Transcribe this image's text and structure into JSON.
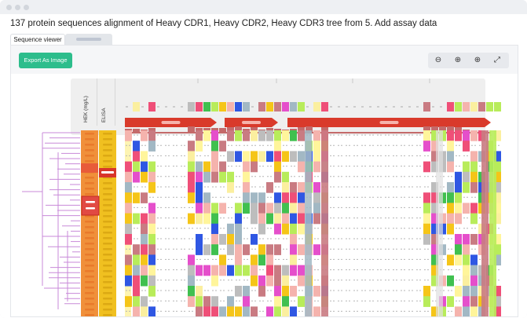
{
  "page": {
    "title": "137 protein sequences alignment of Heavy CDR1, Heavy CDR2, Heavy CDR3 tree from 5. Add assay data"
  },
  "tabs": [
    {
      "label": "Sequence viewer",
      "active": true
    },
    {
      "label": "",
      "active": false
    }
  ],
  "toolbar": {
    "export_label": "Export As Image",
    "zoom_buttons": [
      {
        "icon": "zoom-out-icon",
        "glyph": "⊖"
      },
      {
        "icon": "zoom-in-icon",
        "glyph": "⊕"
      },
      {
        "icon": "zoom-fit-icon",
        "glyph": "⊕"
      },
      {
        "icon": "expand-icon",
        "glyph": "⤢"
      }
    ]
  },
  "tracks": [
    {
      "label": "HEK (mg/L)"
    },
    {
      "label": "ELISA"
    }
  ],
  "colors": {
    "accent": "#2dbd8c",
    "hek_bar": "#f0903a",
    "elisa_bar": "#f0c020",
    "annotation_red": "#d93a2b",
    "highlight": "#d8362a"
  }
}
